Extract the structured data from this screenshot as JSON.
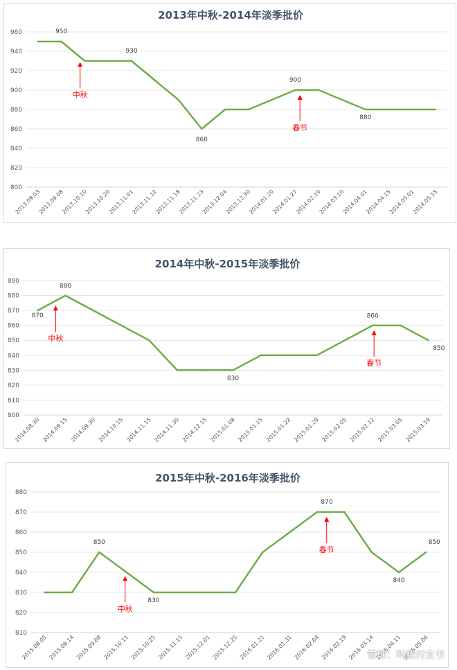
{
  "chart_data": [
    {
      "type": "line",
      "title": "2013年中秋-2014年淡季批价",
      "ylim": [
        800,
        960
      ],
      "yticks": [
        800,
        820,
        840,
        860,
        880,
        900,
        920,
        940,
        960
      ],
      "grid": true,
      "categories": [
        "2013.09.03",
        "2013.09.08",
        "2013.10.10",
        "2013.10.20",
        "2013.11.01",
        "2013.11.12",
        "2013.11.18",
        "2013.11.23",
        "2013.12.04",
        "2013.12.30",
        "2014.01.20",
        "2014.01.27",
        "2014.02.10",
        "2014.03.10",
        "2014.04.01",
        "2014.04.15",
        "2014.05.01",
        "2014.05.15"
      ],
      "series": [
        {
          "values": [
            950,
            950,
            930,
            930,
            930,
            910,
            890,
            860,
            880,
            880,
            890,
            900,
            900,
            890,
            880,
            880,
            880,
            880
          ]
        }
      ],
      "data_labels": [
        {
          "index": 1,
          "text": "950"
        },
        {
          "index": 4,
          "text": "930"
        },
        {
          "index": 7,
          "text": "860"
        },
        {
          "index": 11,
          "text": "900"
        },
        {
          "index": 14,
          "text": "880"
        }
      ],
      "annotations": [
        {
          "text": "中秋",
          "index": 1.8
        },
        {
          "text": "春节",
          "index": 11.2
        }
      ]
    },
    {
      "type": "line",
      "title": "2014年中秋-2015年淡季批价",
      "ylim": [
        800,
        890
      ],
      "yticks": [
        800,
        810,
        820,
        830,
        840,
        850,
        860,
        870,
        880,
        890
      ],
      "grid": true,
      "categories": [
        "2014.08.30",
        "2014.09.15",
        "2014.09.30",
        "2014.10.15",
        "2014.11.15",
        "2014.11.30",
        "2014.12.15",
        "2015.01.08",
        "2015.01.15",
        "2015.01.22",
        "2015.01.29",
        "2015.02.05",
        "2015.02.12",
        "2015.03.05",
        "2015.03.19"
      ],
      "series": [
        {
          "values": [
            870,
            880,
            870,
            860,
            850,
            830,
            830,
            830,
            840,
            840,
            840,
            850,
            860,
            860,
            850
          ]
        }
      ],
      "data_labels": [
        {
          "index": 0,
          "text": "870"
        },
        {
          "index": 1,
          "text": "880"
        },
        {
          "index": 7,
          "text": "830"
        },
        {
          "index": 12,
          "text": "860"
        },
        {
          "index": 14,
          "text": "850"
        }
      ],
      "annotations": [
        {
          "text": "中秋",
          "index": 0.65
        },
        {
          "text": "春节",
          "index": 12.05
        }
      ]
    },
    {
      "type": "line",
      "title": "2015年中秋-2016年淡季批价",
      "ylim": [
        810,
        880
      ],
      "yticks": [
        810,
        820,
        830,
        840,
        850,
        860,
        870,
        880
      ],
      "grid": true,
      "categories": [
        "2015.08.05",
        "2015.08.14",
        "2015.09.08",
        "2015.10.11",
        "2015.10.25",
        "2015.11.15",
        "2015.12.01",
        "2015.12.25",
        "2016.01.21",
        "2016.01.31",
        "2016.02.04",
        "2016.02.19",
        "2016.03.14",
        "2016.04.11",
        "2016.05.06"
      ],
      "series": [
        {
          "values": [
            830,
            830,
            850,
            840,
            830,
            830,
            830,
            830,
            850,
            860,
            870,
            870,
            850,
            840,
            850
          ]
        }
      ],
      "data_labels": [
        {
          "index": 2,
          "text": "850"
        },
        {
          "index": 4,
          "text": "830"
        },
        {
          "index": 10,
          "text": "870"
        },
        {
          "index": 13,
          "text": "840"
        },
        {
          "index": 14,
          "text": "850"
        }
      ],
      "annotations": [
        {
          "text": "中秋",
          "index": 2.95
        },
        {
          "text": "春节",
          "index": 10.35
        }
      ]
    }
  ],
  "watermark": "雪球：叫我付支书"
}
